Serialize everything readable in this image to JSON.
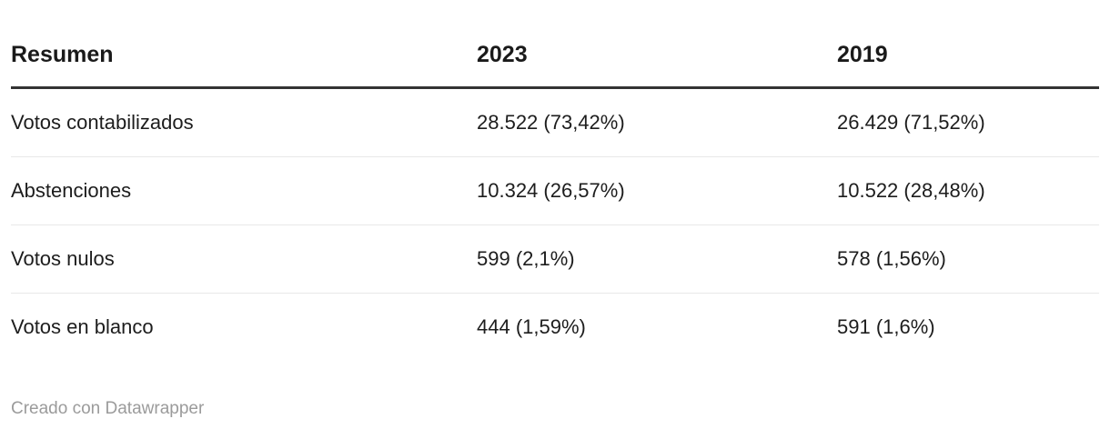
{
  "colors": {
    "background": "#ffffff",
    "header_text": "#1a1a1a",
    "body_text": "#1d1d1d",
    "header_rule": "#333333",
    "row_rule": "#e8e8e8",
    "attribution_text": "#9b9b9b"
  },
  "footer": {
    "attribution": "Creado con Datawrapper"
  },
  "chart_data": {
    "type": "table",
    "title": "Resumen",
    "columns": [
      "Resumen",
      "2023",
      "2019"
    ],
    "rows": [
      [
        "Votos contabilizados",
        "28.522 (73,42%)",
        "26.429 (71,52%)"
      ],
      [
        "Abstenciones",
        "10.324 (26,57%)",
        "10.522 (28,48%)"
      ],
      [
        "Votos nulos",
        "599 (2,1%)",
        "578 (1,56%)"
      ],
      [
        "Votos en blanco",
        "444 (1,59%)",
        "591 (1,6%)"
      ]
    ],
    "series": [
      {
        "name": "2023",
        "values": [
          28522,
          10324,
          599,
          444
        ],
        "percentages": [
          73.42,
          26.57,
          2.1,
          1.59
        ]
      },
      {
        "name": "2019",
        "values": [
          26429,
          10522,
          578,
          591
        ],
        "percentages": [
          71.52,
          28.48,
          1.56,
          1.6
        ]
      }
    ],
    "attribution": "Creado con Datawrapper"
  }
}
